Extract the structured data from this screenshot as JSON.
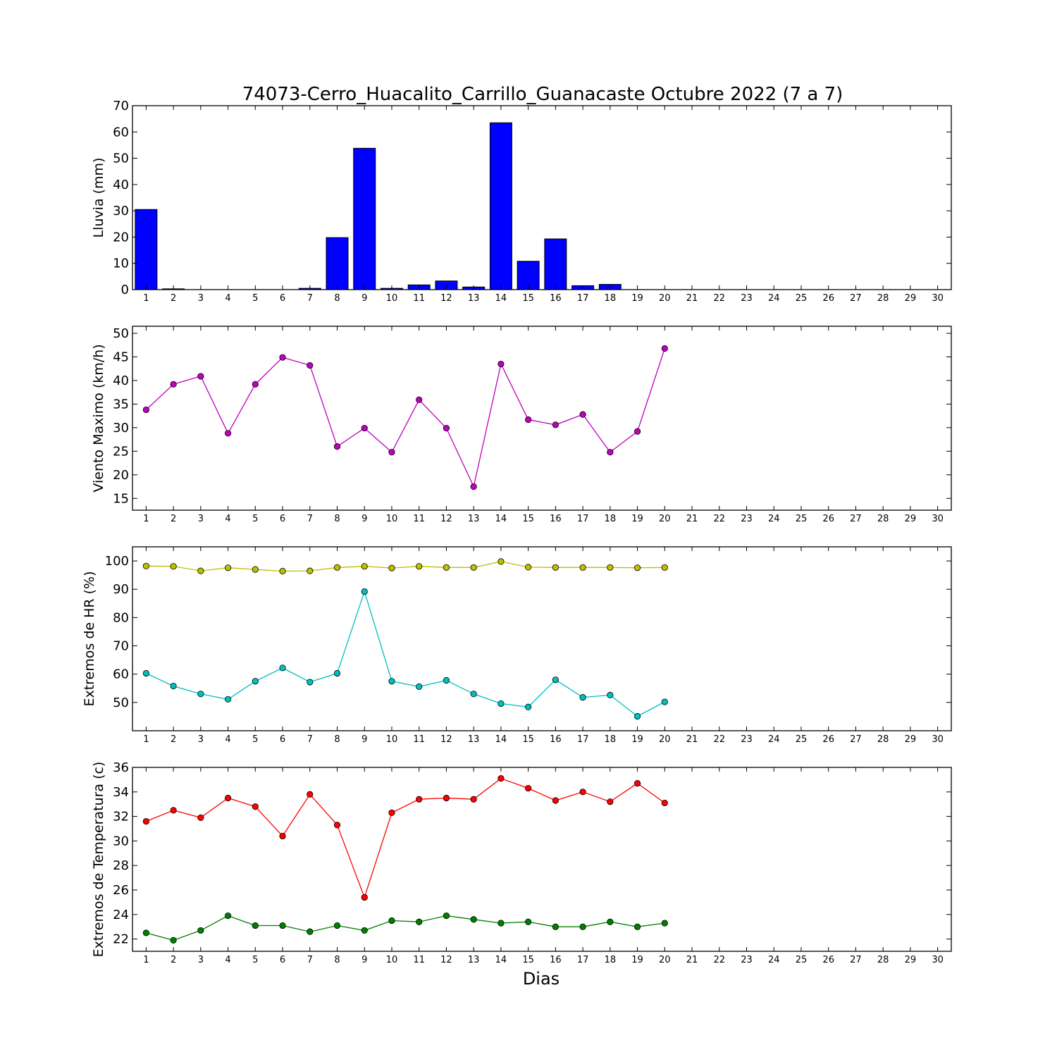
{
  "title": "74073-Cerro_Huacalito_Carrillo_Guanacaste Octubre 2022  (7 a 7)",
  "xlabel": "Dias",
  "chart_data": [
    {
      "type": "bar",
      "ylabel": "Lluvia (mm)",
      "ylim": [
        0,
        70
      ],
      "yticks": [
        0,
        10,
        20,
        30,
        40,
        50,
        60,
        70
      ],
      "xlim": [
        0.5,
        30.5
      ],
      "x": [
        1,
        2,
        3,
        4,
        5,
        6,
        7,
        8,
        9,
        10,
        11,
        12,
        13,
        14,
        15,
        16,
        17,
        18,
        19,
        20
      ],
      "series": [
        {
          "color": "#0000ff",
          "values": [
            30.5,
            0.3,
            0,
            0,
            0,
            0,
            0.5,
            19.8,
            53.8,
            0.5,
            1.8,
            3.3,
            1.0,
            63.5,
            10.8,
            19.3,
            1.5,
            2.0,
            0,
            0
          ]
        }
      ]
    },
    {
      "type": "line",
      "ylabel": "Viento Maximo (km/h)",
      "ylim": [
        12.5,
        51.5
      ],
      "yticks": [
        15,
        20,
        25,
        30,
        35,
        40,
        45,
        50
      ],
      "xlim": [
        0.5,
        30.5
      ],
      "x": [
        1,
        2,
        3,
        4,
        5,
        6,
        7,
        8,
        9,
        10,
        11,
        12,
        13,
        14,
        15,
        16,
        17,
        18,
        19,
        20
      ],
      "series": [
        {
          "color": "#bf00bf",
          "values": [
            33.8,
            39.2,
            40.9,
            28.8,
            39.2,
            44.9,
            43.2,
            26.0,
            29.9,
            24.8,
            35.9,
            29.9,
            17.5,
            43.5,
            31.7,
            30.6,
            32.8,
            24.8,
            29.2,
            46.8
          ]
        }
      ]
    },
    {
      "type": "line",
      "ylabel": "Extremos de HR (%)",
      "ylim": [
        40,
        105
      ],
      "yticks": [
        50,
        60,
        70,
        80,
        90,
        100
      ],
      "xlim": [
        0.5,
        30.5
      ],
      "x": [
        1,
        2,
        3,
        4,
        5,
        6,
        7,
        8,
        9,
        10,
        11,
        12,
        13,
        14,
        15,
        16,
        17,
        18,
        19,
        20
      ],
      "series": [
        {
          "color": "#bfbf00",
          "values": [
            98.2,
            98.1,
            96.5,
            97.6,
            97.0,
            96.4,
            96.5,
            97.7,
            98.1,
            97.5,
            98.1,
            97.7,
            97.7,
            99.8,
            97.8,
            97.7,
            97.7,
            97.7,
            97.6,
            97.7
          ]
        },
        {
          "color": "#00bfbf",
          "values": [
            60.3,
            55.8,
            53.0,
            51.1,
            57.5,
            62.2,
            57.2,
            60.3,
            89.2,
            57.5,
            55.6,
            57.8,
            53.0,
            49.6,
            48.4,
            58.0,
            51.8,
            52.6,
            45.1,
            50.2
          ]
        }
      ]
    },
    {
      "type": "line",
      "ylabel": "Extremos de Temperatura (c)",
      "ylim": [
        21,
        36
      ],
      "yticks": [
        22,
        24,
        26,
        28,
        30,
        32,
        34,
        36
      ],
      "xlim": [
        0.5,
        30.5
      ],
      "x": [
        1,
        2,
        3,
        4,
        5,
        6,
        7,
        8,
        9,
        10,
        11,
        12,
        13,
        14,
        15,
        16,
        17,
        18,
        19,
        20
      ],
      "series": [
        {
          "color": "#ff0000",
          "values": [
            31.6,
            32.5,
            31.9,
            33.5,
            32.8,
            30.4,
            33.8,
            31.3,
            25.4,
            32.3,
            33.4,
            33.5,
            33.4,
            35.1,
            34.3,
            33.3,
            34.0,
            33.2,
            34.7,
            33.1
          ]
        },
        {
          "color": "#008000",
          "values": [
            22.5,
            21.9,
            22.7,
            23.9,
            23.1,
            23.1,
            22.6,
            23.1,
            22.7,
            23.5,
            23.4,
            23.9,
            23.6,
            23.3,
            23.4,
            23.0,
            23.0,
            23.4,
            23.0,
            23.3
          ]
        }
      ]
    }
  ]
}
